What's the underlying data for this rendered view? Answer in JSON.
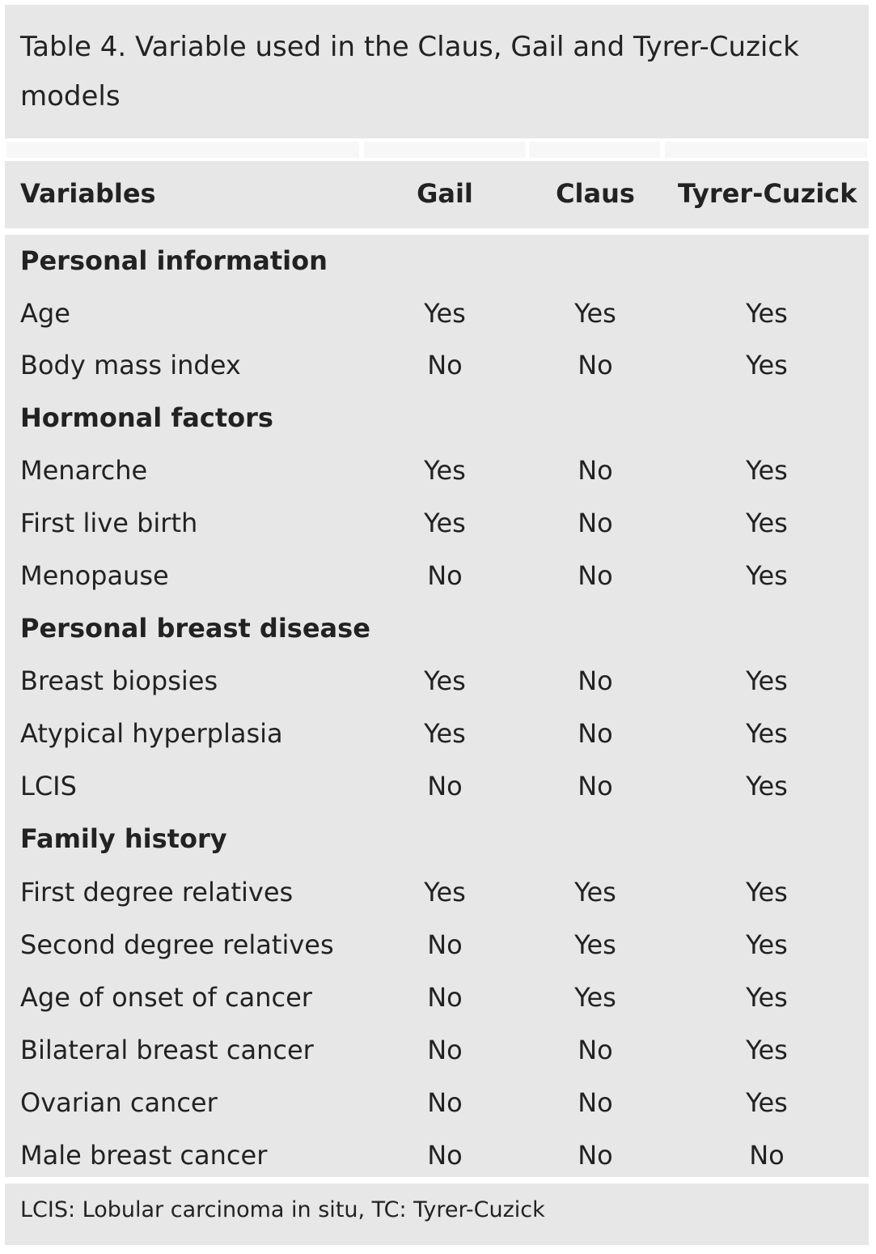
{
  "title": "Table 4. Variable used in the Claus, Gail and Tyrer-Cuzick models",
  "headers": {
    "variables": "Variables",
    "gail": "Gail",
    "claus": "Claus",
    "tc": "Tyrer-Cuzick"
  },
  "rows": [
    {
      "type": "section",
      "label": "Personal information"
    },
    {
      "type": "data",
      "label": "Age",
      "gail": "Yes",
      "claus": "Yes",
      "tc": "Yes"
    },
    {
      "type": "data",
      "label": "Body mass index",
      "gail": "No",
      "claus": "No",
      "tc": "Yes"
    },
    {
      "type": "section",
      "label": "Hormonal factors"
    },
    {
      "type": "data",
      "label": "Menarche",
      "gail": "Yes",
      "claus": "No",
      "tc": "Yes"
    },
    {
      "type": "data",
      "label": "First live birth",
      "gail": "Yes",
      "claus": "No",
      "tc": "Yes"
    },
    {
      "type": "data",
      "label": "Menopause",
      "gail": "No",
      "claus": "No",
      "tc": "Yes"
    },
    {
      "type": "section",
      "label": "Personal breast disease"
    },
    {
      "type": "data",
      "label": "Breast biopsies",
      "gail": "Yes",
      "claus": "No",
      "tc": "Yes"
    },
    {
      "type": "data",
      "label": "Atypical hyperplasia",
      "gail": "Yes",
      "claus": "No",
      "tc": "Yes"
    },
    {
      "type": "data",
      "label": "LCIS",
      "gail": "No",
      "claus": "No",
      "tc": "Yes"
    },
    {
      "type": "section",
      "label": "Family history"
    },
    {
      "type": "data",
      "label": "First degree relatives",
      "gail": "Yes",
      "claus": "Yes",
      "tc": "Yes"
    },
    {
      "type": "data",
      "label": "Second degree relatives",
      "gail": "No",
      "claus": "Yes",
      "tc": "Yes"
    },
    {
      "type": "data",
      "label": "Age of onset of cancer",
      "gail": "No",
      "claus": "Yes",
      "tc": "Yes"
    },
    {
      "type": "data",
      "label": "Bilateral breast cancer",
      "gail": "No",
      "claus": "No",
      "tc": "Yes"
    },
    {
      "type": "data",
      "label": "Ovarian cancer",
      "gail": "No",
      "claus": "No",
      "tc": "Yes"
    },
    {
      "type": "data",
      "label": "Male breast cancer",
      "gail": "No",
      "claus": "No",
      "tc": "No"
    }
  ],
  "footnote": "LCIS: Lobular carcinoma in situ, TC: Tyrer-Cuzick"
}
